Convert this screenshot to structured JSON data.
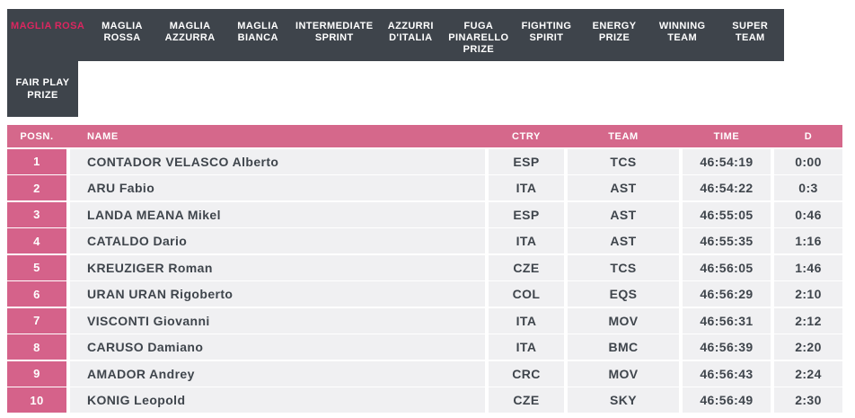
{
  "colors": {
    "nav_background": "#3e444b",
    "active_tab_text": "#dc2660",
    "header_pink": "#d5688b",
    "position_cell_pink": "#d5628a",
    "row_background": "#f0f0f2",
    "cell_text": "#3f454c"
  },
  "nav": {
    "active_tab": "MAGLIA ROSA",
    "row1": [
      "MAGLIA ROSA",
      "MAGLIA ROSSA",
      "MAGLIA AZZURRA",
      "MAGLIA BIANCA",
      "INTERMEDIATE SPRINT",
      "AZZURRI D'ITALIA",
      "FUGA PINARELLO PRIZE",
      "FIGHTING SPIRIT",
      "ENERGY PRIZE",
      "WINNING TEAM",
      "SUPER TEAM"
    ],
    "row2": "FAIR PLAY PRIZE"
  },
  "table": {
    "columns": [
      "POSN.",
      "NAME",
      "CTRY",
      "TEAM",
      "TIME",
      "D"
    ],
    "rows": [
      {
        "posn": "1",
        "name": "CONTADOR VELASCO Alberto",
        "ctry": "ESP",
        "team": "TCS",
        "time": "46:54:19",
        "d": "0:00"
      },
      {
        "posn": "2",
        "name": "ARU Fabio",
        "ctry": "ITA",
        "team": "AST",
        "time": "46:54:22",
        "d": "0:3"
      },
      {
        "posn": "3",
        "name": "LANDA MEANA Mikel",
        "ctry": "ESP",
        "team": "AST",
        "time": "46:55:05",
        "d": "0:46"
      },
      {
        "posn": "4",
        "name": "CATALDO Dario",
        "ctry": "ITA",
        "team": "AST",
        "time": "46:55:35",
        "d": "1:16"
      },
      {
        "posn": "5",
        "name": "KREUZIGER Roman",
        "ctry": "CZE",
        "team": "TCS",
        "time": "46:56:05",
        "d": "1:46"
      },
      {
        "posn": "6",
        "name": "URAN URAN Rigoberto",
        "ctry": "COL",
        "team": "EQS",
        "time": "46:56:29",
        "d": "2:10"
      },
      {
        "posn": "7",
        "name": "VISCONTI Giovanni",
        "ctry": "ITA",
        "team": "MOV",
        "time": "46:56:31",
        "d": "2:12"
      },
      {
        "posn": "8",
        "name": "CARUSO Damiano",
        "ctry": "ITA",
        "team": "BMC",
        "time": "46:56:39",
        "d": "2:20"
      },
      {
        "posn": "9",
        "name": "AMADOR Andrey",
        "ctry": "CRC",
        "team": "MOV",
        "time": "46:56:43",
        "d": "2:24"
      },
      {
        "posn": "10",
        "name": "KONIG Leopold",
        "ctry": "CZE",
        "team": "SKY",
        "time": "46:56:49",
        "d": "2:30"
      }
    ]
  }
}
